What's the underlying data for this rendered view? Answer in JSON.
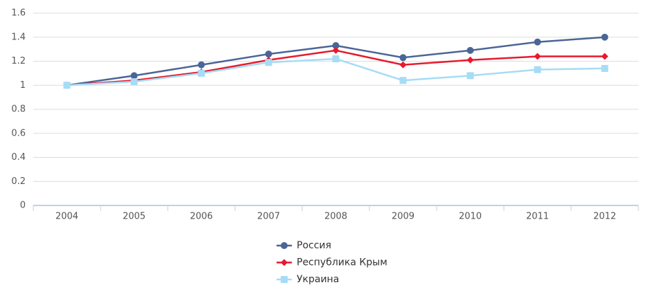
{
  "chart_data": {
    "type": "line",
    "categories": [
      "2004",
      "2005",
      "2006",
      "2007",
      "2008",
      "2009",
      "2010",
      "2011",
      "2012"
    ],
    "series": [
      {
        "name": "Россия",
        "color": "#4a6597",
        "marker": "circle",
        "values": [
          1.0,
          1.08,
          1.17,
          1.26,
          1.33,
          1.23,
          1.29,
          1.36,
          1.4
        ]
      },
      {
        "name": "Республика Крым",
        "color": "#e8192c",
        "marker": "diamond",
        "values": [
          1.0,
          1.04,
          1.11,
          1.21,
          1.29,
          1.17,
          1.21,
          1.24,
          1.24
        ]
      },
      {
        "name": "Украина",
        "color": "#a6dcf5",
        "marker": "square",
        "values": [
          1.0,
          1.03,
          1.1,
          1.19,
          1.22,
          1.04,
          1.08,
          1.13,
          1.14
        ]
      }
    ],
    "ylim": [
      0,
      1.6
    ],
    "yticks": [
      0,
      0.2,
      0.4,
      0.6,
      0.8,
      1,
      1.2,
      1.4,
      1.6
    ],
    "grid": true,
    "legend": "bottom"
  }
}
